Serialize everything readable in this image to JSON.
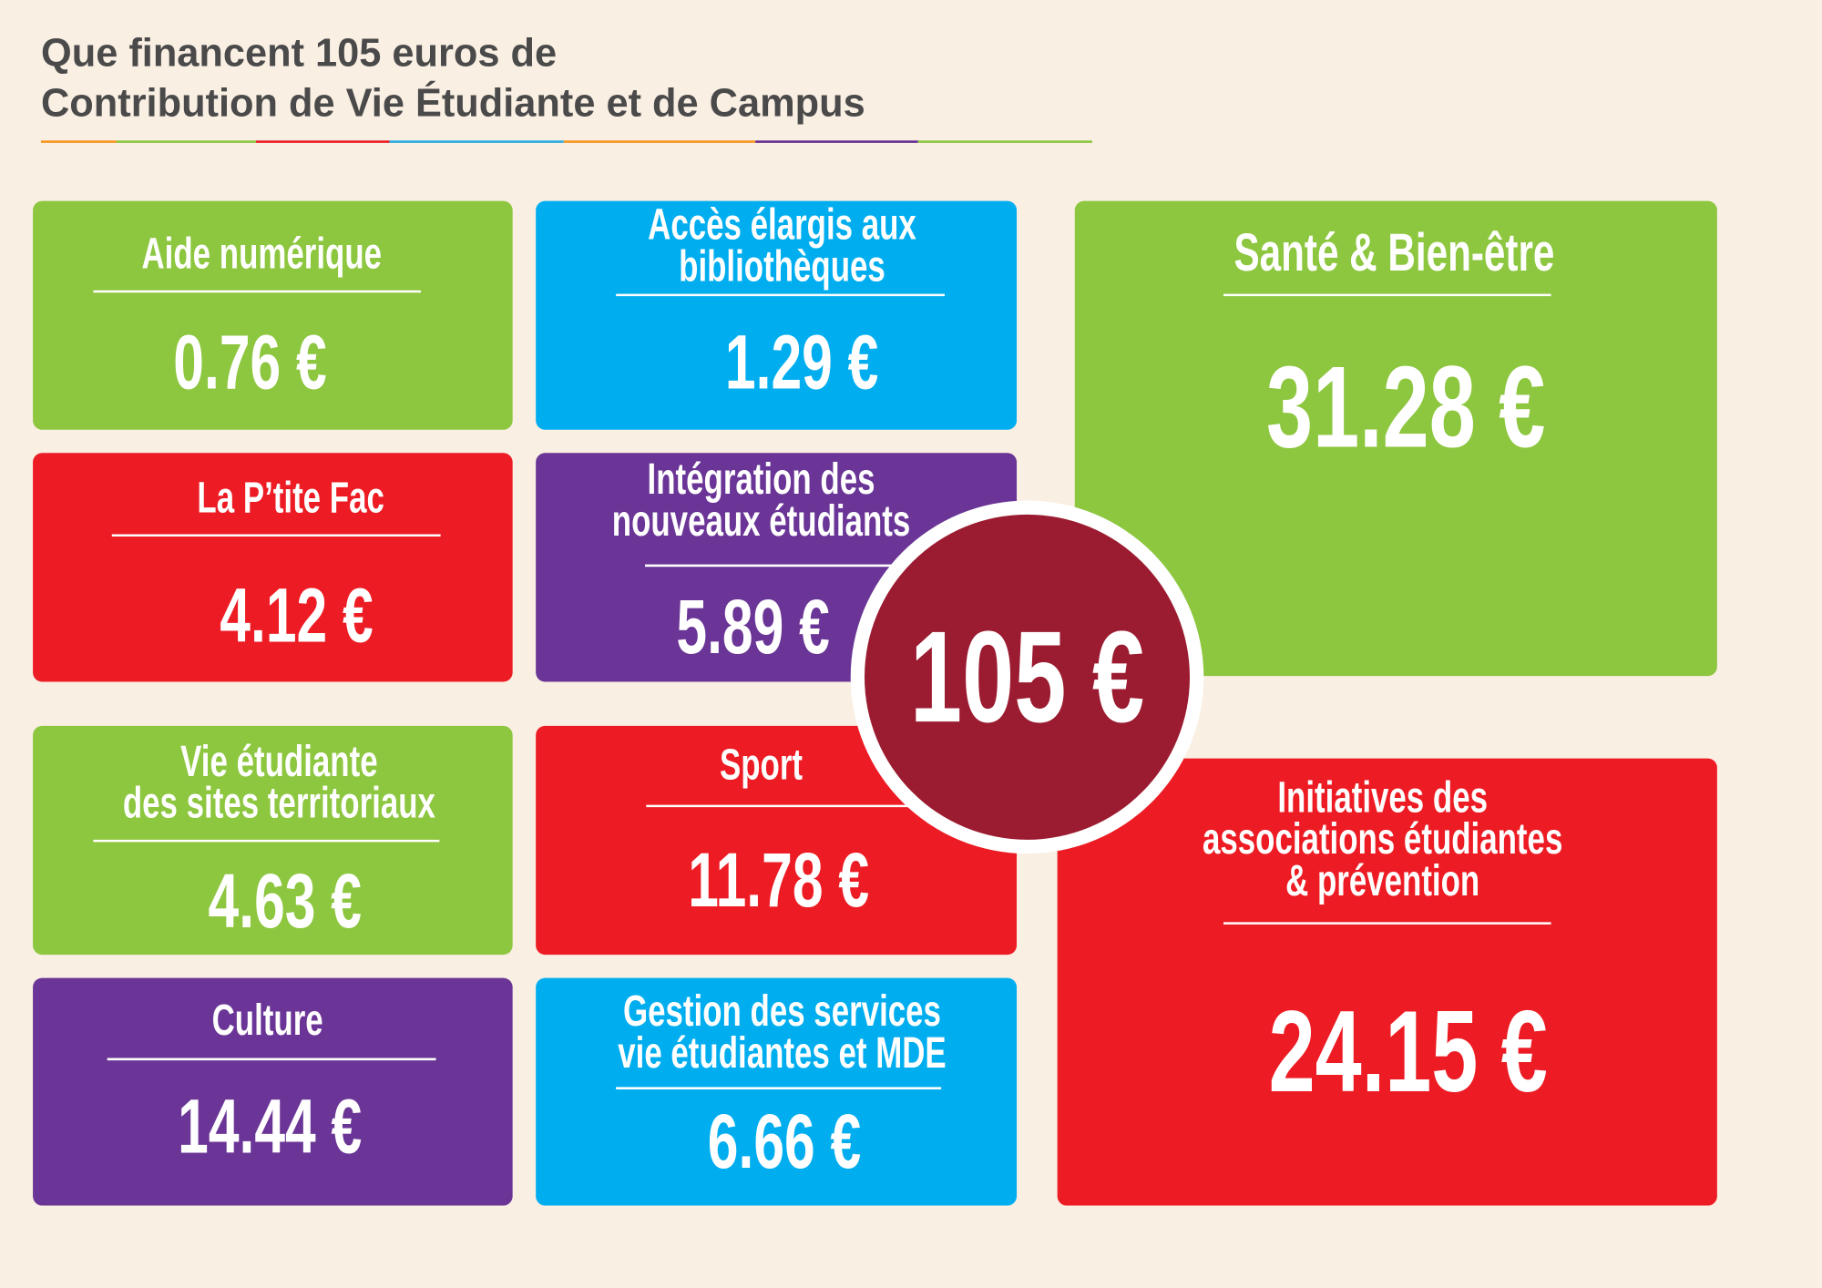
{
  "header": {
    "title": [
      "Que financent 105 euros de",
      "Contribution de Vie Étudiante et de Campus"
    ]
  },
  "tiles": [
    {
      "label": [
        "Aide numérique"
      ],
      "amount": "0.76 €"
    },
    {
      "label": [
        "Accès élargis aux",
        "bibliothèques"
      ],
      "amount": "1.29 €"
    },
    {
      "label": [
        "Santé & Bien-être"
      ],
      "amount": "31.28 €"
    },
    {
      "label": [
        "La P’tite Fac"
      ],
      "amount": "4.12 €"
    },
    {
      "label": [
        "Intégration des",
        "nouveaux étudiants"
      ],
      "amount": "5.89 €"
    },
    {
      "label": [
        "Vie étudiante",
        "des sites territoriaux"
      ],
      "amount": "4.63 €"
    },
    {
      "label": [
        "Sport"
      ],
      "amount": "11.78 €"
    },
    {
      "label": [
        "Initiatives des",
        "associations étudiantes",
        "& prévention"
      ],
      "amount": "24.15 €"
    },
    {
      "label": [
        "Culture"
      ],
      "amount": "14.44 €"
    },
    {
      "label": [
        "Gestion des services",
        "vie étudiantes et MDE"
      ],
      "amount": "6.66 €"
    }
  ],
  "total": "105 €"
}
